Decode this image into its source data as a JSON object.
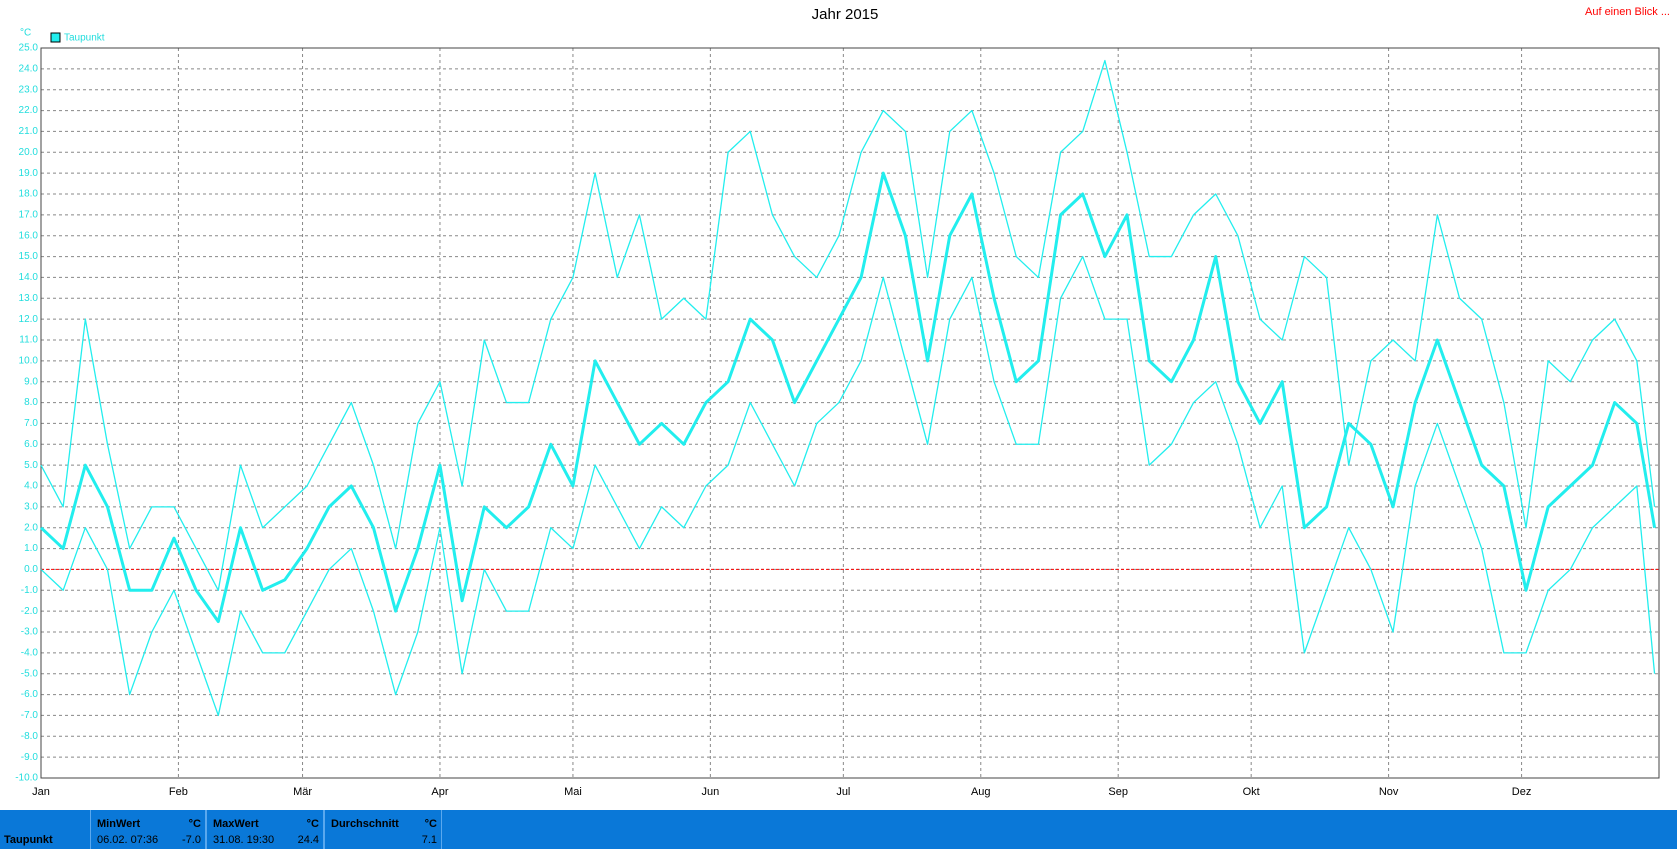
{
  "chart_data": {
    "type": "line",
    "title": "Jahr 2015",
    "y_unit": "°C",
    "link": "Auf einen Blick ...",
    "x": [
      0,
      5,
      10,
      15,
      20,
      25,
      30,
      35,
      40,
      45,
      50,
      55,
      60,
      65,
      70,
      75,
      80,
      85,
      90,
      95,
      100,
      105,
      110,
      115,
      120,
      125,
      130,
      135,
      140,
      145,
      150,
      155,
      160,
      165,
      170,
      175,
      180,
      185,
      190,
      195,
      200,
      205,
      210,
      215,
      220,
      225,
      230,
      235,
      240,
      245,
      250,
      255,
      260,
      265,
      270,
      275,
      280,
      285,
      290,
      295,
      300,
      305,
      310,
      315,
      320,
      325,
      330,
      335,
      340,
      345,
      350,
      355,
      360,
      364
    ],
    "series": [
      {
        "name": "Taupunkt",
        "color": "#22eeee",
        "values": [
          2,
          1,
          5,
          3,
          -1,
          -1,
          1.5,
          -1,
          -2.5,
          2,
          -1,
          -0.5,
          1,
          3,
          4,
          2,
          -2,
          1,
          5,
          -1.5,
          3,
          2,
          3,
          6,
          4,
          10,
          8,
          6,
          7,
          6,
          8,
          9,
          12,
          11,
          8,
          10,
          12,
          14,
          19,
          16,
          10,
          16,
          18,
          13,
          9,
          10,
          17,
          18,
          15,
          17,
          10,
          9,
          11,
          15,
          9,
          7,
          9,
          2,
          3,
          7,
          6,
          3,
          8,
          11,
          8,
          5,
          4,
          -1,
          3,
          4,
          5,
          8,
          7,
          2
        ]
      },
      {
        "color": "#22eeee",
        "values": [
          5,
          3,
          12,
          6,
          1,
          3,
          3,
          1,
          -1,
          5,
          2,
          3,
          4,
          6,
          8,
          5,
          1,
          7,
          9,
          4,
          11,
          8,
          8,
          12,
          14,
          19,
          14,
          17,
          12,
          13,
          12,
          20,
          21,
          17,
          15,
          14,
          16,
          20,
          22,
          21,
          14,
          21,
          22,
          19,
          15,
          14,
          20,
          21,
          24.4,
          20,
          15,
          15,
          17,
          18,
          16,
          12,
          11,
          15,
          14,
          5,
          10,
          11,
          10,
          17,
          13,
          12,
          8,
          2,
          10,
          9,
          11,
          12,
          10,
          3
        ]
      },
      {
        "color": "#22eeee",
        "values": [
          0,
          -1,
          2,
          0,
          -6,
          -3,
          -1,
          -4,
          -7,
          -2,
          -4,
          -4,
          -2,
          0,
          1,
          -2,
          -6,
          -3,
          2,
          -5,
          0,
          -2,
          -2,
          2,
          1,
          5,
          3,
          1,
          3,
          2,
          4,
          5,
          8,
          6,
          4,
          7,
          8,
          10,
          14,
          10,
          6,
          12,
          14,
          9,
          6,
          6,
          13,
          15,
          12,
          12,
          5,
          6,
          8,
          9,
          6,
          2,
          4,
          -4,
          -1,
          2,
          0,
          -3,
          4,
          7,
          4,
          1,
          -4,
          -4,
          -1,
          0,
          2,
          3,
          4,
          -5
        ]
      }
    ],
    "xlim": [
      0,
      365
    ],
    "xticks": [
      {
        "value": 0,
        "label": "Jan"
      },
      {
        "value": 31,
        "label": "Feb"
      },
      {
        "value": 59,
        "label": "Mär"
      },
      {
        "value": 90,
        "label": "Apr"
      },
      {
        "value": 120,
        "label": "Mai"
      },
      {
        "value": 151,
        "label": "Jun"
      },
      {
        "value": 181,
        "label": "Jul"
      },
      {
        "value": 212,
        "label": "Aug"
      },
      {
        "value": 243,
        "label": "Sep"
      },
      {
        "value": 273,
        "label": "Okt"
      },
      {
        "value": 304,
        "label": "Nov"
      },
      {
        "value": 334,
        "label": "Dez"
      }
    ],
    "ylim": [
      -10,
      25
    ],
    "yticks": [
      {
        "value": 25,
        "label": "25.0"
      },
      {
        "value": 24,
        "label": "24.0"
      },
      {
        "value": 23,
        "label": "23.0"
      },
      {
        "value": 22,
        "label": "22.0"
      },
      {
        "value": 21,
        "label": "21.0"
      },
      {
        "value": 20,
        "label": "20.0"
      },
      {
        "value": 19,
        "label": "19.0"
      },
      {
        "value": 18,
        "label": "18.0"
      },
      {
        "value": 17,
        "label": "17.0"
      },
      {
        "value": 16,
        "label": "16.0"
      },
      {
        "value": 15,
        "label": "15.0"
      },
      {
        "value": 14,
        "label": "14.0"
      },
      {
        "value": 13,
        "label": "13.0"
      },
      {
        "value": 12,
        "label": "12.0"
      },
      {
        "value": 11,
        "label": "11.0"
      },
      {
        "value": 10,
        "label": "10.0"
      },
      {
        "value": 9,
        "label": "9.0"
      },
      {
        "value": 8,
        "label": "8.0"
      },
      {
        "value": 7,
        "label": "7.0"
      },
      {
        "value": 6,
        "label": "6.0"
      },
      {
        "value": 5,
        "label": "5.0"
      },
      {
        "value": 4,
        "label": "4.0"
      },
      {
        "value": 3,
        "label": "3.0"
      },
      {
        "value": 2,
        "label": "2.0"
      },
      {
        "value": 1,
        "label": "1.0"
      },
      {
        "value": 0,
        "label": "0.0"
      },
      {
        "value": -1,
        "label": "-1.0"
      },
      {
        "value": -2,
        "label": "-2.0"
      },
      {
        "value": -3,
        "label": "-3.0"
      },
      {
        "value": -4,
        "label": "-4.0"
      },
      {
        "value": -5,
        "label": "-5.0"
      },
      {
        "value": -6,
        "label": "-6.0"
      },
      {
        "value": -7,
        "label": "-7.0"
      },
      {
        "value": -8,
        "label": "-8.0"
      },
      {
        "value": -9,
        "label": "-9.0"
      },
      {
        "value": -10,
        "label": "-10.0"
      }
    ],
    "grid": true,
    "reference_line": {
      "value": 0,
      "color": "#ff0000"
    }
  },
  "stats": {
    "row_label": "Taupunkt",
    "columns": [
      {
        "header": "MinWert",
        "unit": "°C",
        "time": "06.02.  07:36",
        "value": "-7.0"
      },
      {
        "header": "MaxWert",
        "unit": "°C",
        "time": "31.08.  19:30",
        "value": "24.4"
      },
      {
        "header": "Durchschnitt",
        "unit": "°C",
        "time": "",
        "value": "7.1"
      }
    ]
  }
}
